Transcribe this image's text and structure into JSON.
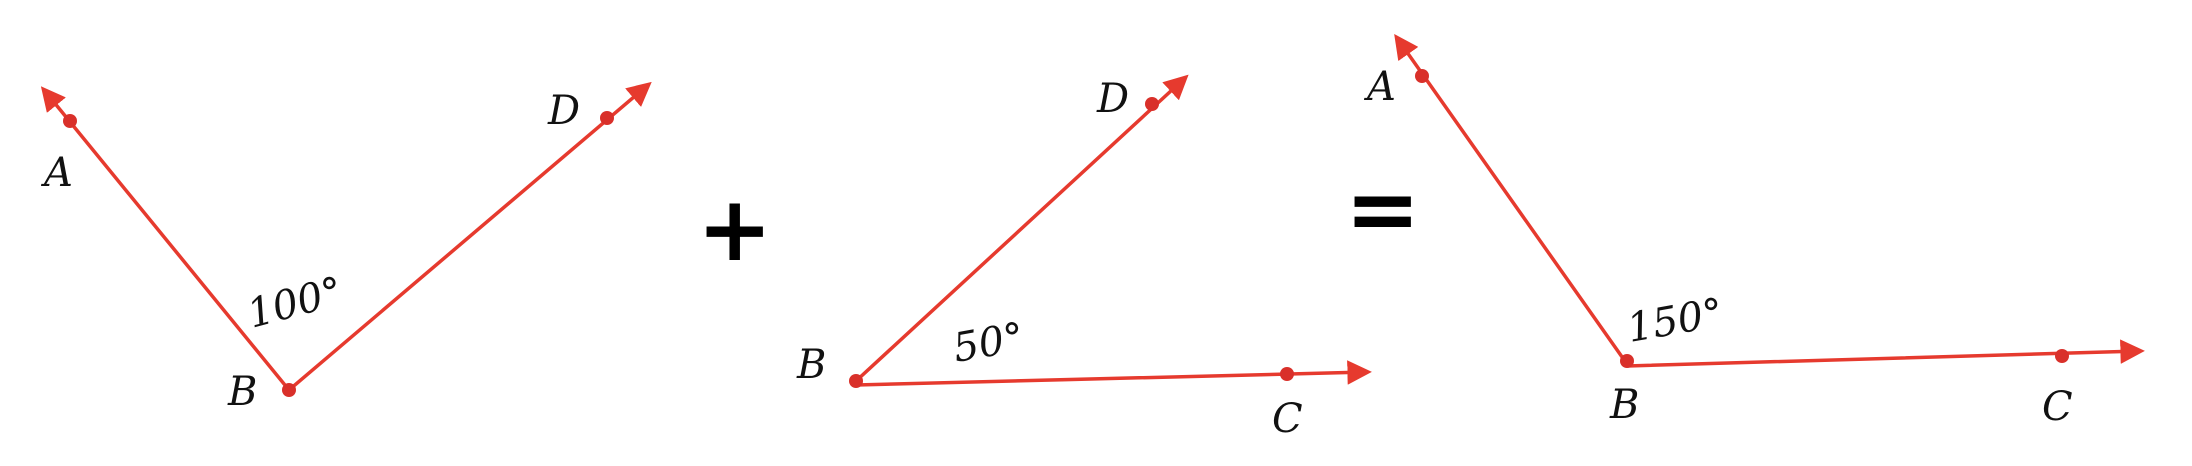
{
  "colors": {
    "ray": "#e63a2e",
    "point": "#d9302a",
    "text": "#111111"
  },
  "diagrams": [
    {
      "angle_label": "100°",
      "labels": {
        "a": "A",
        "b": "B",
        "d": "D"
      }
    },
    {
      "angle_label": "50°",
      "labels": {
        "b": "B",
        "c": "C",
        "d": "D"
      }
    },
    {
      "angle_label": "150°",
      "labels": {
        "a": "A",
        "b": "B",
        "c": "C"
      }
    }
  ],
  "operators": {
    "plus": "+",
    "equals": "="
  }
}
